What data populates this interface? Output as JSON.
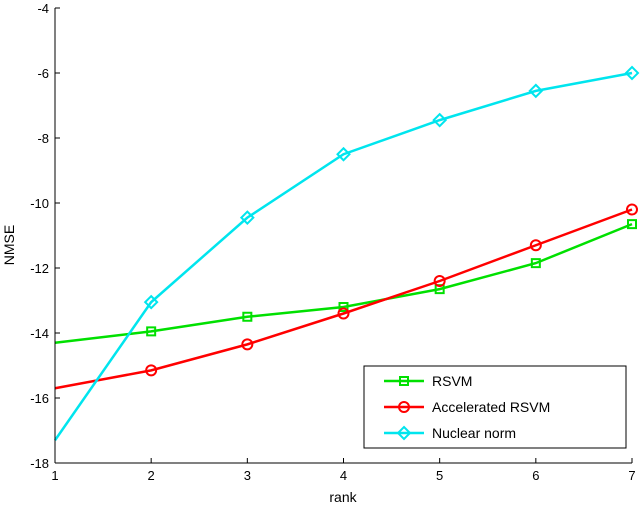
{
  "chart_data": {
    "type": "line",
    "xlabel": "rank",
    "ylabel": "NMSE",
    "xlim": [
      1,
      7
    ],
    "ylim": [
      -18,
      -4
    ],
    "xticks": [
      1,
      2,
      3,
      4,
      5,
      6,
      7
    ],
    "yticks": [
      -18,
      -16,
      -14,
      -12,
      -10,
      -8,
      -6,
      -4
    ],
    "grid": false,
    "legend_position": "bottom-right",
    "x": [
      1,
      2,
      3,
      4,
      5,
      6,
      7
    ],
    "series": [
      {
        "name": "RSVM",
        "color": "#00e000",
        "marker": "square",
        "values": [
          -14.3,
          -13.95,
          -13.5,
          -13.2,
          -12.65,
          -11.85,
          -10.65
        ],
        "markers_at": [
          2,
          3,
          4,
          5,
          6,
          7
        ]
      },
      {
        "name": "Accelerated RSVM",
        "color": "#ff0000",
        "marker": "circle",
        "values": [
          -15.7,
          -15.15,
          -14.35,
          -13.4,
          -12.4,
          -11.3,
          -10.2
        ],
        "markers_at": [
          2,
          3,
          4,
          5,
          6,
          7
        ]
      },
      {
        "name": "Nuclear norm",
        "color": "#00e5ee",
        "marker": "diamond",
        "values": [
          -17.3,
          -13.05,
          -10.45,
          -8.5,
          -7.45,
          -6.55,
          -6.0
        ],
        "markers_at": [
          2,
          3,
          4,
          5,
          6,
          7
        ]
      }
    ]
  }
}
